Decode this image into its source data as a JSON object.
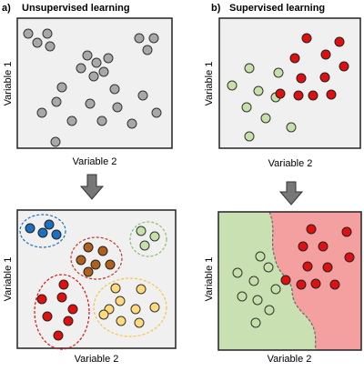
{
  "colors": {
    "panel_bg": "#f0f0f0",
    "panel_border": "#222222",
    "arrow": "#777777",
    "gray": "#a8a8a8",
    "green": "#c5e0a8",
    "red": "#e01010",
    "blue": "#1e6fc0",
    "brown": "#b0601a",
    "yellow": "#ffd97a",
    "green_region": "#c8e0b2",
    "red_region": "#f4a0a0"
  },
  "arrow_icon": "down-arrow-icon",
  "panel_a": {
    "label": "a)",
    "title": "Unsupervised learning",
    "xlabel": "Variable 2",
    "ylabel": "Variable 1",
    "clusters_ylabel": "Variable 1",
    "clusters_xlabel": "Variable 2"
  },
  "panel_b": {
    "label": "b)",
    "title": "Supervised learning",
    "xlabel": "Variable 2",
    "ylabel": "Variable 1",
    "boundary_ylabel": "Variable 1",
    "boundary_xlabel": "Variable 2"
  }
}
